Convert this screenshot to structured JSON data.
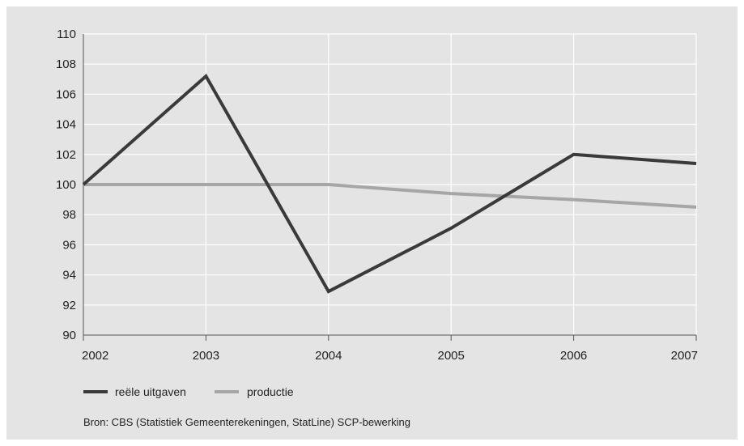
{
  "chart_data": {
    "type": "line",
    "title": "",
    "xlabel": "",
    "ylabel": "",
    "x": [
      "2002",
      "2003",
      "2004",
      "2005",
      "2006",
      "2007"
    ],
    "ylim": [
      90,
      110
    ],
    "yticks": [
      90,
      92,
      94,
      96,
      98,
      100,
      102,
      104,
      106,
      108,
      110
    ],
    "grid": "vertical and horizontal, white",
    "legend_position": "bottom-left",
    "series": [
      {
        "name": "reële uitgaven",
        "color": "#3a3a3a",
        "values": [
          100,
          107.2,
          92.9,
          97.1,
          102.0,
          101.4
        ]
      },
      {
        "name": "productie",
        "color": "#a6a6a6",
        "values": [
          100,
          100,
          100,
          99.4,
          99.0,
          98.5
        ]
      }
    ],
    "source": "Bron: CBS (Statistiek Gemeenterekeningen, StatLine) SCP-bewerking"
  }
}
